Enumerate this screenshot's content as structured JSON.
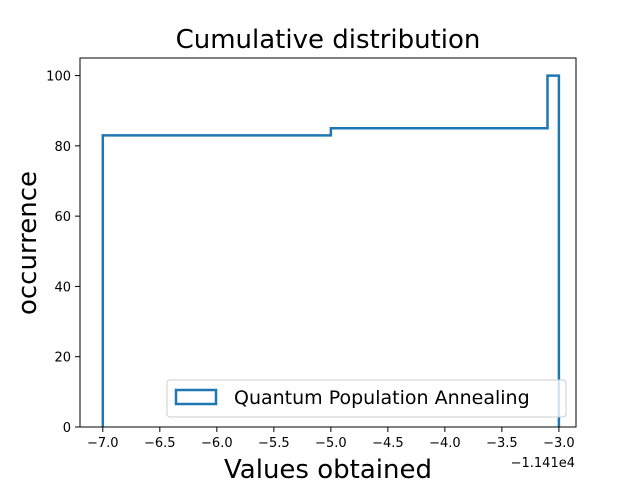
{
  "chart_data": {
    "type": "step",
    "title": "Cumulative distribution",
    "xlabel": "Values obtained",
    "ylabel": "occurrence",
    "x_offset_label": "−1.141e4",
    "xlim": [
      -7.2,
      -2.85
    ],
    "ylim": [
      0,
      105
    ],
    "xticks": [
      -7.0,
      -6.5,
      -6.0,
      -5.5,
      -5.0,
      -4.5,
      -4.0,
      -3.5,
      -3.0
    ],
    "xtick_labels": [
      "−7.0",
      "−6.5",
      "−6.0",
      "−5.5",
      "−5.0",
      "−4.5",
      "−4.0",
      "−3.5",
      "−3.0"
    ],
    "yticks": [
      0,
      20,
      40,
      60,
      80,
      100
    ],
    "ytick_labels": [
      "0",
      "20",
      "40",
      "60",
      "80",
      "100"
    ],
    "grid": false,
    "legend_position": "lower-right",
    "series": [
      {
        "name": "Quantum Population Annealing",
        "color": "#1f77b4",
        "bins": [
          -7.0,
          -5.0,
          -3.1,
          -3.0
        ],
        "cumulative": [
          83,
          85,
          100
        ]
      }
    ]
  }
}
